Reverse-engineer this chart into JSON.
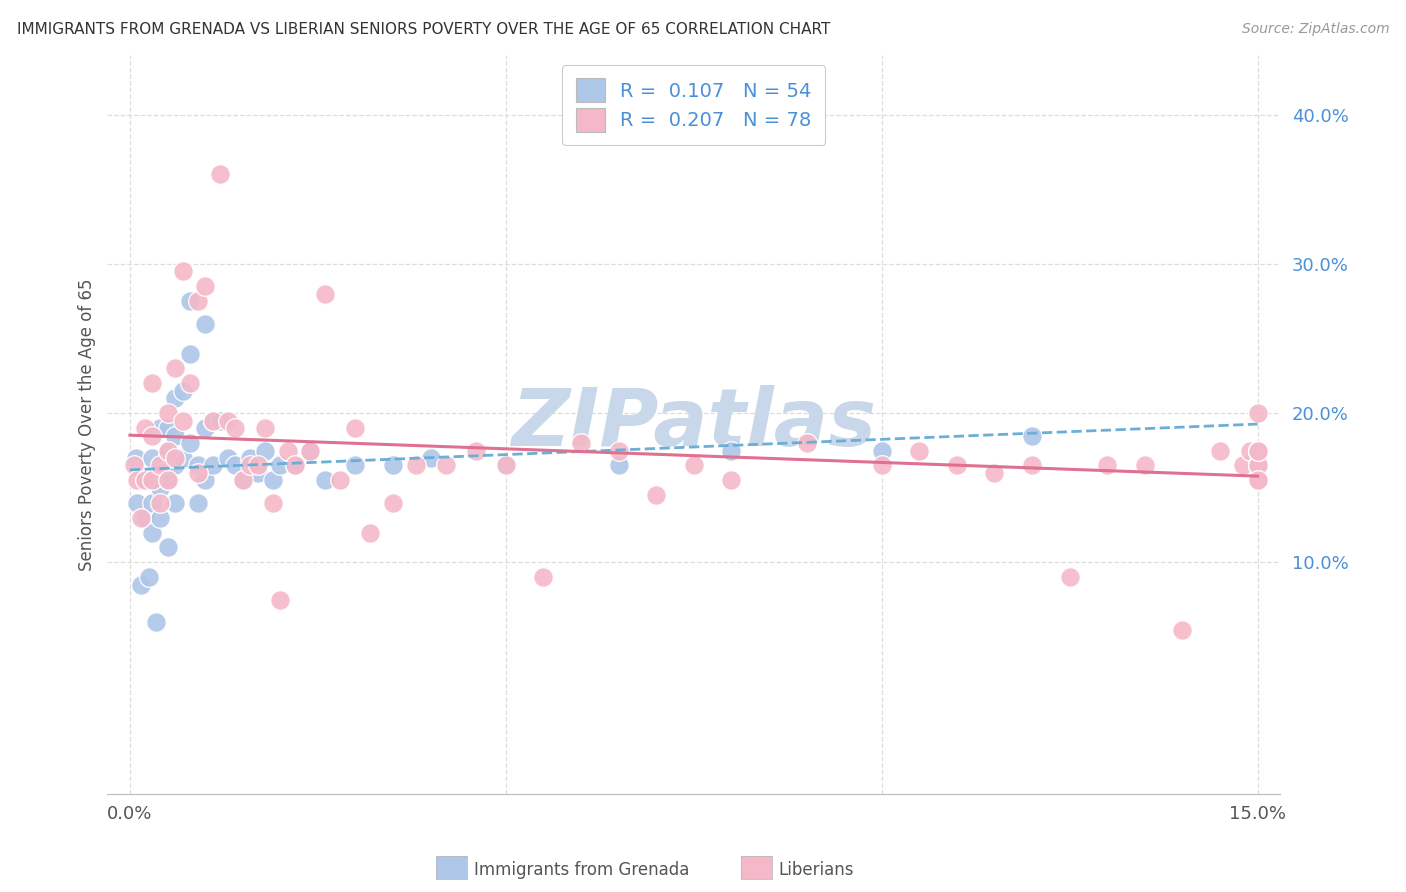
{
  "title": "IMMIGRANTS FROM GRENADA VS LIBERIAN SENIORS POVERTY OVER THE AGE OF 65 CORRELATION CHART",
  "source": "Source: ZipAtlas.com",
  "ylabel": "Seniors Poverty Over the Age of 65",
  "xlim": [
    -0.003,
    0.153
  ],
  "ylim": [
    -0.055,
    0.44
  ],
  "yticks_right": [
    0.1,
    0.2,
    0.3,
    0.4
  ],
  "ytick_labels_right": [
    "10.0%",
    "20.0%",
    "30.0%",
    "40.0%"
  ],
  "xtick_positions": [
    0.0,
    0.15
  ],
  "xtick_labels": [
    "0.0%",
    "15.0%"
  ],
  "grenada_color": "#aec6e8",
  "grenada_edge": "#7aacd4",
  "liberia_color": "#f4b8c8",
  "liberia_edge": "#e890aa",
  "grenada_line_color": "#6baed6",
  "liberia_line_color": "#e07090",
  "grenada_R": 0.107,
  "grenada_N": 54,
  "liberia_R": 0.207,
  "liberia_N": 78,
  "watermark": "ZIPatlas",
  "watermark_color": "#c8d8ea",
  "grid_color": "#dddddd",
  "grenada_x": [
    0.0008,
    0.001,
    0.0015,
    0.002,
    0.002,
    0.0025,
    0.003,
    0.003,
    0.003,
    0.0035,
    0.004,
    0.004,
    0.004,
    0.004,
    0.005,
    0.005,
    0.005,
    0.005,
    0.006,
    0.006,
    0.006,
    0.006,
    0.007,
    0.007,
    0.008,
    0.008,
    0.008,
    0.009,
    0.009,
    0.01,
    0.01,
    0.01,
    0.011,
    0.011,
    0.012,
    0.013,
    0.014,
    0.015,
    0.016,
    0.017,
    0.018,
    0.019,
    0.02,
    0.022,
    0.024,
    0.026,
    0.03,
    0.035,
    0.04,
    0.05,
    0.065,
    0.08,
    0.1,
    0.12
  ],
  "grenada_y": [
    0.17,
    0.14,
    0.085,
    0.155,
    0.13,
    0.09,
    0.17,
    0.14,
    0.12,
    0.06,
    0.19,
    0.16,
    0.15,
    0.13,
    0.19,
    0.175,
    0.155,
    0.11,
    0.21,
    0.185,
    0.165,
    0.14,
    0.215,
    0.17,
    0.275,
    0.24,
    0.18,
    0.165,
    0.14,
    0.26,
    0.19,
    0.155,
    0.195,
    0.165,
    0.195,
    0.17,
    0.165,
    0.155,
    0.17,
    0.16,
    0.175,
    0.155,
    0.165,
    0.165,
    0.175,
    0.155,
    0.165,
    0.165,
    0.17,
    0.165,
    0.165,
    0.175,
    0.175,
    0.185
  ],
  "liberia_x": [
    0.0005,
    0.001,
    0.0015,
    0.002,
    0.002,
    0.003,
    0.003,
    0.003,
    0.004,
    0.004,
    0.005,
    0.005,
    0.005,
    0.006,
    0.006,
    0.007,
    0.007,
    0.008,
    0.009,
    0.009,
    0.01,
    0.011,
    0.012,
    0.013,
    0.014,
    0.015,
    0.016,
    0.017,
    0.018,
    0.019,
    0.02,
    0.021,
    0.022,
    0.024,
    0.026,
    0.028,
    0.03,
    0.032,
    0.035,
    0.038,
    0.042,
    0.046,
    0.05,
    0.055,
    0.06,
    0.065,
    0.07,
    0.075,
    0.08,
    0.09,
    0.1,
    0.105,
    0.11,
    0.115,
    0.12,
    0.125,
    0.13,
    0.135,
    0.14,
    0.145,
    0.148,
    0.149,
    0.15,
    0.15,
    0.15,
    0.15,
    0.15,
    0.15,
    0.15,
    0.15,
    0.15,
    0.15,
    0.15,
    0.15,
    0.15,
    0.15,
    0.15,
    0.15
  ],
  "liberia_y": [
    0.165,
    0.155,
    0.13,
    0.19,
    0.155,
    0.22,
    0.185,
    0.155,
    0.165,
    0.14,
    0.2,
    0.175,
    0.155,
    0.23,
    0.17,
    0.295,
    0.195,
    0.22,
    0.275,
    0.16,
    0.285,
    0.195,
    0.36,
    0.195,
    0.19,
    0.155,
    0.165,
    0.165,
    0.19,
    0.14,
    0.075,
    0.175,
    0.165,
    0.175,
    0.28,
    0.155,
    0.19,
    0.12,
    0.14,
    0.165,
    0.165,
    0.175,
    0.165,
    0.09,
    0.18,
    0.175,
    0.145,
    0.165,
    0.155,
    0.18,
    0.165,
    0.175,
    0.165,
    0.16,
    0.165,
    0.09,
    0.165,
    0.165,
    0.055,
    0.175,
    0.165,
    0.175,
    0.165,
    0.175,
    0.155,
    0.165,
    0.175,
    0.165,
    0.165,
    0.155,
    0.175,
    0.155,
    0.175,
    0.165,
    0.175,
    0.155,
    0.175,
    0.2
  ]
}
